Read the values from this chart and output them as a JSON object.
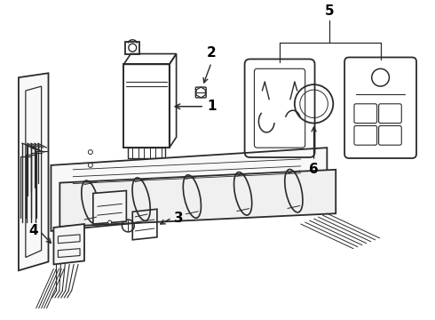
{
  "background_color": "#ffffff",
  "line_color": "#2a2a2a",
  "label_color": "#000000",
  "figsize": [
    4.9,
    3.6
  ],
  "dpi": 100,
  "xlim": [
    0,
    490
  ],
  "ylim": [
    0,
    360
  ]
}
